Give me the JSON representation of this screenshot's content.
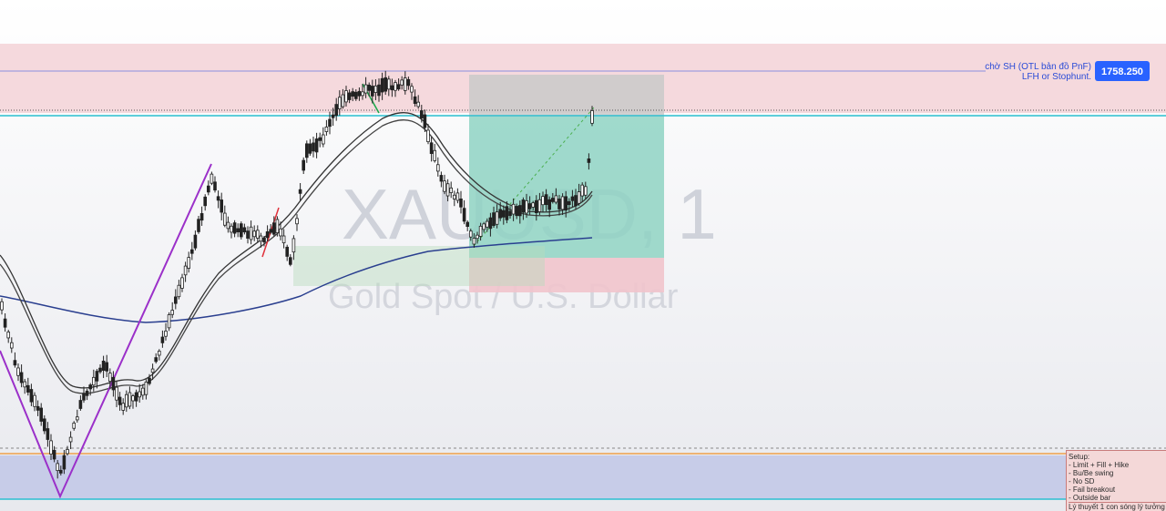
{
  "watermark": {
    "symbol": "XAUUSD, 1",
    "name": "Gold Spot / U.S. Dollar"
  },
  "resistance_zone": {
    "note_line1": "chờ SH (OTL bản đồ PnF)",
    "note_line2": "LFH or Stophunt.",
    "price_label": "1758.250"
  },
  "setup_box": {
    "title": "Setup:",
    "items": [
      "- Limit + Fill + Hike",
      "- Bu/Be swing",
      "- No SD",
      "- Fail breakout",
      "- Outside bar"
    ],
    "footer": "Lý thuyết 1 con sóng lý tưởng"
  },
  "colors": {
    "resistance_zone": "#f5d9dd",
    "support_zone": "#c7cce8",
    "cyan_level": "#2bbfd0",
    "orange_level": "#f0a04a",
    "target_box": "#8fd3c3",
    "stop_box": "#f1c4cc",
    "price_badge": "#2962ff",
    "zigzag": "#9b30c9",
    "ma_slow": "#2a3f8f"
  }
}
